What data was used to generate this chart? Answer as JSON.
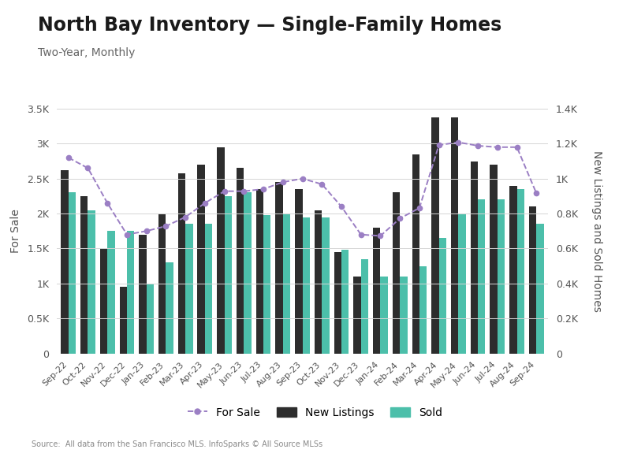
{
  "title": "North Bay Inventory — Single-Family Homes",
  "subtitle": "Two-Year, Monthly",
  "ylabel_left": "For Sale",
  "ylabel_right": "New Listings and Sold Homes",
  "source": "Source:  All data from the San Francisco MLS. InfoSparks © All Source MLSs",
  "categories": [
    "Sep-22",
    "Oct-22",
    "Nov-22",
    "Dec-22",
    "Jan-23",
    "Feb-23",
    "Mar-23",
    "Apr-23",
    "May-23",
    "Jun-23",
    "Jul-23",
    "Aug-23",
    "Sep-23",
    "Oct-23",
    "Nov-23",
    "Dec-23",
    "Jan-24",
    "Feb-24",
    "Mar-24",
    "Apr-24",
    "May-24",
    "Jun-24",
    "Jul-24",
    "Aug-24",
    "Sep-24"
  ],
  "for_sale": [
    2800,
    2650,
    2150,
    1700,
    1750,
    1820,
    1950,
    2150,
    2320,
    2320,
    2350,
    2450,
    2500,
    2420,
    2100,
    1700,
    1680,
    1930,
    2080,
    2980,
    3020,
    2970,
    2950,
    2950,
    2290
  ],
  "new_listings": [
    1050,
    900,
    600,
    380,
    680,
    800,
    1030,
    1080,
    1180,
    1060,
    940,
    980,
    940,
    820,
    580,
    440,
    720,
    920,
    1140,
    1350,
    1350,
    1100,
    1080,
    960,
    840
  ],
  "sold": [
    920,
    820,
    700,
    700,
    400,
    520,
    740,
    740,
    900,
    920,
    792,
    800,
    780,
    780,
    592,
    540,
    440,
    440,
    500,
    660,
    800,
    880,
    880,
    940,
    740
  ],
  "for_sale_color": "#9b7fc4",
  "new_listings_color": "#2d2d2d",
  "sold_color": "#4cbfaa",
  "ylim_left": [
    0,
    3500
  ],
  "ylim_right": [
    0,
    1400
  ],
  "left_ticks": [
    0,
    500,
    1000,
    1500,
    2000,
    2500,
    3000,
    3500
  ],
  "left_tick_labels": [
    "0",
    "0.5K",
    "1K",
    "1.5K",
    "2K",
    "2.5K",
    "3K",
    "3.5K"
  ],
  "right_ticks": [
    0,
    200,
    400,
    600,
    800,
    1000,
    1200,
    1400
  ],
  "right_tick_labels": [
    "0",
    "0.2K",
    "0.4K",
    "0.6K",
    "0.8K",
    "1K",
    "1.2K",
    "1.4K"
  ],
  "background_color": "#ffffff",
  "grid_color": "#d5d5d5",
  "title_fontsize": 17,
  "subtitle_fontsize": 10,
  "tick_fontsize": 9,
  "label_fontsize": 10,
  "bar_width": 0.38
}
